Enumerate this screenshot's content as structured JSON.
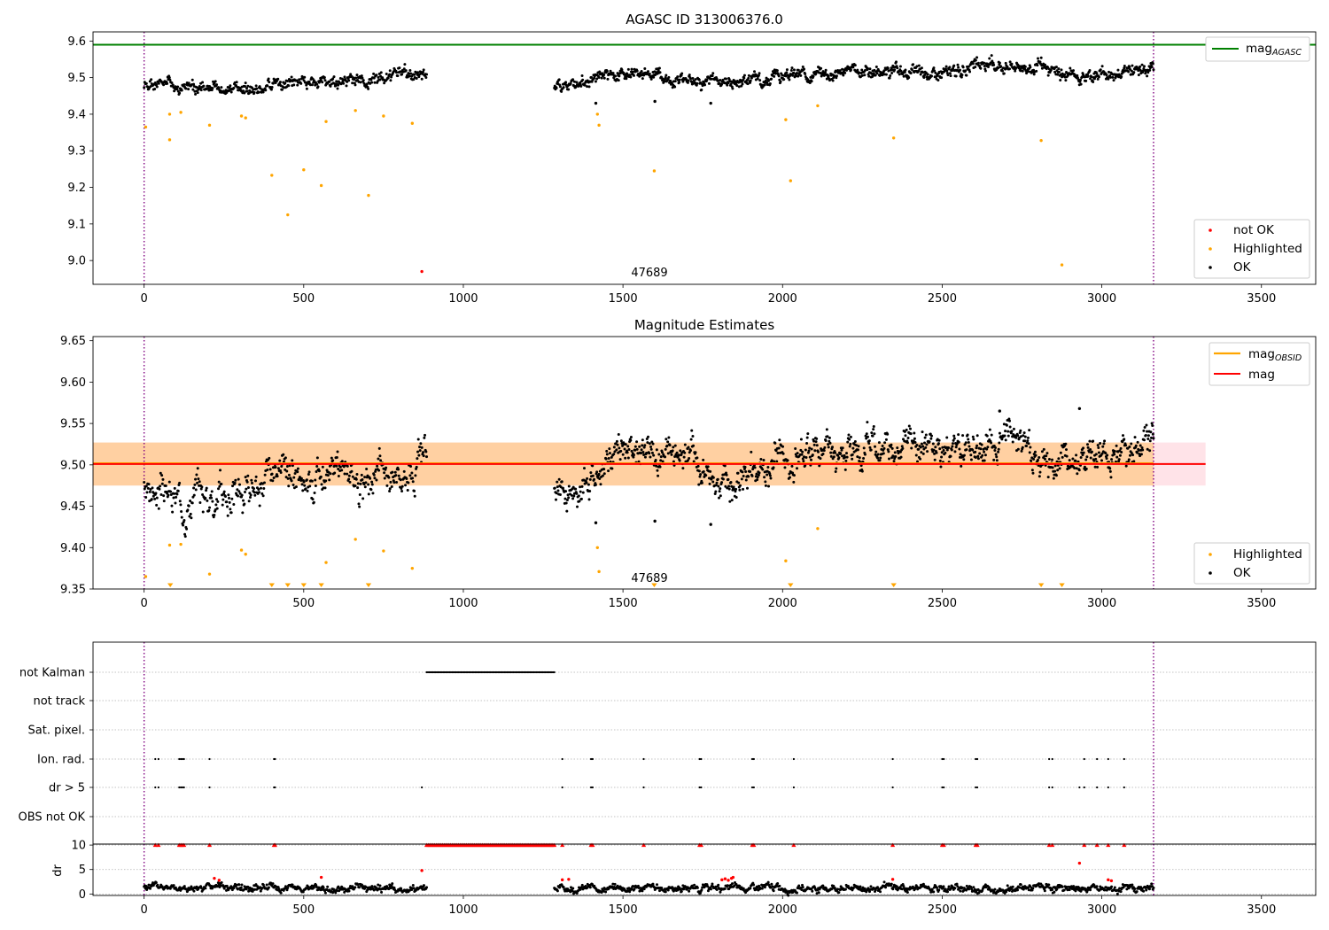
{
  "chart_data": [
    {
      "type": "scatter",
      "title": "AGASC ID 313006376.0",
      "xlim": [
        -160,
        3670
      ],
      "ylim": [
        8.935,
        9.625
      ],
      "x_ticks": [
        0,
        500,
        1000,
        1500,
        2000,
        2500,
        3000,
        3500
      ],
      "y_ticks": [
        9.0,
        9.1,
        9.2,
        9.3,
        9.4,
        9.5,
        9.6
      ],
      "grid": false,
      "vertical_lines": [
        0,
        3162
      ],
      "annotation": {
        "text": "47689",
        "x": 1500,
        "y": 8.955
      },
      "lines": [
        {
          "name": "mag",
          "subscript": "AGASC",
          "y": 9.59,
          "color": "#008000"
        }
      ],
      "series": [
        {
          "name": "OK",
          "color": "#000000",
          "segments": [
            {
              "x_start": 0,
              "x_end": 885,
              "count": 480,
              "base": [
                [
                  0,
                  9.475
                ],
                [
                  300,
                  9.47
                ],
                [
                  600,
                  9.485
                ],
                [
                  885,
                  9.51
                ]
              ],
              "amp": 0.018,
              "seed": 1
            },
            {
              "x_start": 1285,
              "x_end": 3162,
              "count": 1100,
              "base": [
                [
                  1285,
                  9.48
                ],
                [
                  1500,
                  9.51
                ],
                [
                  1800,
                  9.49
                ],
                [
                  2200,
                  9.52
                ],
                [
                  2500,
                  9.51
                ],
                [
                  2700,
                  9.54
                ],
                [
                  2900,
                  9.505
                ],
                [
                  3162,
                  9.52
                ]
              ],
              "amp": 0.018,
              "seed": 2
            }
          ],
          "points": [
            [
              1415,
              9.43
            ],
            [
              1600,
              9.435
            ],
            [
              1775,
              9.43
            ]
          ]
        },
        {
          "name": "Highlighted",
          "color": "#ffa500",
          "points": [
            [
              5,
              9.365
            ],
            [
              80,
              9.4
            ],
            [
              80,
              9.33
            ],
            [
              115,
              9.405
            ],
            [
              205,
              9.37
            ],
            [
              305,
              9.395
            ],
            [
              318,
              9.39
            ],
            [
              400,
              9.233
            ],
            [
              450,
              9.125
            ],
            [
              500,
              9.248
            ],
            [
              555,
              9.205
            ],
            [
              570,
              9.38
            ],
            [
              662,
              9.41
            ],
            [
              703,
              9.178
            ],
            [
              750,
              9.395
            ],
            [
              840,
              9.375
            ],
            [
              1420,
              9.4
            ],
            [
              1425,
              9.37
            ],
            [
              1598,
              9.245
            ],
            [
              2010,
              9.385
            ],
            [
              2025,
              9.218
            ],
            [
              2110,
              9.423
            ],
            [
              2348,
              9.335
            ],
            [
              2810,
              9.328
            ],
            [
              2875,
              8.988
            ]
          ]
        },
        {
          "name": "not OK",
          "color": "#ff0000",
          "points": [
            [
              870,
              8.97
            ]
          ]
        }
      ],
      "legend": {
        "placement": "lower-right",
        "entries": [
          "not OK",
          "Highlighted",
          "OK"
        ]
      },
      "legend_lines": {
        "placement": "upper-right"
      }
    },
    {
      "type": "scatter",
      "title": "Magnitude Estimates",
      "xlim": [
        -160,
        3670
      ],
      "ylim": [
        9.35,
        9.655
      ],
      "x_ticks": [
        0,
        500,
        1000,
        1500,
        2000,
        2500,
        3000,
        3500
      ],
      "y_ticks": [
        9.35,
        9.4,
        9.45,
        9.5,
        9.55,
        9.6,
        9.65
      ],
      "grid": false,
      "vertical_lines": [
        0,
        3162
      ],
      "annotation": {
        "text": "47689",
        "x": 1500,
        "y": 9.363
      },
      "bands": [
        {
          "y_low": 9.475,
          "y_high": 9.527,
          "x_start": -160,
          "x_end": 3325,
          "color": "#ffc0cb"
        },
        {
          "y_low": 9.475,
          "y_high": 9.527,
          "x_start": -160,
          "x_end": 3162,
          "color": "#ffa500"
        }
      ],
      "lines": [
        {
          "name": "mag",
          "subscript": "OBSID",
          "y": 9.502,
          "x_start": -160,
          "x_end": 3162,
          "color": "#ffa500"
        },
        {
          "name": "mag",
          "y": 9.501,
          "x_start": -160,
          "x_end": 3325,
          "color": "#ff0000"
        }
      ],
      "series": [
        {
          "name": "OK",
          "color": "#000000",
          "segments": [
            {
              "x_start": 0,
              "x_end": 885,
              "count": 480,
              "base": [
                [
                  0,
                  9.475
                ],
                [
                  100,
                  9.458
                ],
                [
                  300,
                  9.468
                ],
                [
                  450,
                  9.482
                ],
                [
                  600,
                  9.495
                ],
                [
                  700,
                  9.482
                ],
                [
                  885,
                  9.51
                ]
              ],
              "amp": 0.022,
              "seed": 3
            },
            {
              "x_start": 1285,
              "x_end": 3162,
              "count": 1100,
              "base": [
                [
                  1285,
                  9.475
                ],
                [
                  1350,
                  9.47
                ],
                [
                  1500,
                  9.515
                ],
                [
                  1700,
                  9.505
                ],
                [
                  1800,
                  9.475
                ],
                [
                  2000,
                  9.51
                ],
                [
                  2200,
                  9.52
                ],
                [
                  2450,
                  9.53
                ],
                [
                  2550,
                  9.505
                ],
                [
                  2700,
                  9.54
                ],
                [
                  2850,
                  9.5
                ],
                [
                  3000,
                  9.515
                ],
                [
                  3162,
                  9.525
                ]
              ],
              "amp": 0.02,
              "seed": 4
            }
          ],
          "points": [
            [
              1415,
              9.43
            ],
            [
              1600,
              9.432
            ],
            [
              1775,
              9.428
            ],
            [
              2680,
              9.565
            ],
            [
              2930,
              9.568
            ]
          ]
        },
        {
          "name": "Highlighted",
          "color": "#ffa500",
          "points": [
            [
              5,
              9.365
            ],
            [
              80,
              9.403
            ],
            [
              115,
              9.404
            ],
            [
              205,
              9.368
            ],
            [
              305,
              9.397
            ],
            [
              318,
              9.392
            ],
            [
              570,
              9.382
            ],
            [
              662,
              9.41
            ],
            [
              750,
              9.396
            ],
            [
              840,
              9.375
            ],
            [
              1420,
              9.4
            ],
            [
              1425,
              9.371
            ],
            [
              2010,
              9.384
            ],
            [
              2110,
              9.423
            ]
          ]
        }
      ],
      "clipped_markers": {
        "color": "#ffa500",
        "x": [
          82,
          400,
          450,
          500,
          555,
          703,
          1598,
          2025,
          2348,
          2810,
          2875
        ]
      },
      "legend": {
        "placement": "lower-right",
        "entries": [
          "Highlighted",
          "OK"
        ]
      },
      "legend_lines": {
        "placement": "upper-right"
      }
    },
    {
      "type": "scatter",
      "xlim": [
        -160,
        3670
      ],
      "categories": [
        "not Kalman",
        "not track",
        "Sat. pixel.",
        "Ion. rad.",
        "dr > 5",
        "OBS not OK"
      ],
      "grid": "dotted",
      "vertical_lines": [
        0,
        3162
      ],
      "flags": {
        "not Kalman": {
          "ranges": [
            [
              885,
              1285
            ]
          ]
        },
        "Ion. rad.": {
          "x": [
            35,
            45,
            110,
            115,
            120,
            125,
            205,
            407,
            410,
            1310,
            1400,
            1405,
            1565,
            1740,
            1745,
            1905,
            1910,
            2035,
            2345,
            2500,
            2505,
            2605,
            2610,
            2835,
            2845,
            2945,
            2985,
            3020,
            3070
          ]
        },
        "dr > 5": {
          "x": [
            35,
            45,
            110,
            115,
            120,
            125,
            205,
            407,
            410,
            870,
            1310,
            1400,
            1405,
            1565,
            1740,
            1745,
            1905,
            1910,
            2035,
            2345,
            2500,
            2505,
            2605,
            2610,
            2835,
            2845,
            2930,
            2945,
            2985,
            3020,
            3070
          ]
        }
      }
    },
    {
      "type": "scatter",
      "xlim": [
        -160,
        3670
      ],
      "ylim": [
        -0.3,
        10.2
      ],
      "y_ticks": [
        0,
        5,
        10
      ],
      "x_ticks": [
        0,
        500,
        1000,
        1500,
        2000,
        2500,
        3000,
        3500
      ],
      "ylabel": "dr",
      "grid": "dotted",
      "vertical_lines": [
        0,
        3162
      ],
      "series": [
        {
          "name": "OK",
          "color": "#000000",
          "segments": [
            {
              "x_start": 0,
              "x_end": 885,
              "count": 420,
              "base": [
                [
                  0,
                  1.2
                ],
                [
                  885,
                  1.2
                ]
              ],
              "amp": 0.8,
              "seed": 5
            },
            {
              "x_start": 1285,
              "x_end": 3162,
              "count": 900,
              "base": [
                [
                  1285,
                  1.2
                ],
                [
                  3162,
                  1.2
                ]
              ],
              "amp": 0.8,
              "seed": 6
            }
          ]
        },
        {
          "name": "not OK",
          "color": "#ff0000",
          "points": [
            [
              220,
              3.2
            ],
            [
              235,
              2.8
            ],
            [
              555,
              3.4
            ],
            [
              870,
              4.8
            ],
            [
              1310,
              2.9
            ],
            [
              1330,
              3.0
            ],
            [
              1810,
              2.9
            ],
            [
              1820,
              3.1
            ],
            [
              1830,
              2.8
            ],
            [
              1840,
              3.2
            ],
            [
              1845,
              3.4
            ],
            [
              2930,
              6.3
            ],
            [
              3020,
              2.9
            ],
            [
              3030,
              2.7
            ],
            [
              2345,
              3.0
            ]
          ]
        }
      ],
      "clipped_markers": {
        "color": "#ff0000",
        "x": [
          35,
          45,
          110,
          115,
          120,
          125,
          205,
          407,
          410,
          1310,
          1400,
          1405,
          1565,
          1740,
          1745,
          1905,
          1910,
          2035,
          2345,
          2500,
          2505,
          2605,
          2610,
          2835,
          2845,
          2945,
          2985,
          3020,
          3070
        ],
        "ranges": [
          [
            885,
            1285
          ]
        ]
      }
    }
  ]
}
